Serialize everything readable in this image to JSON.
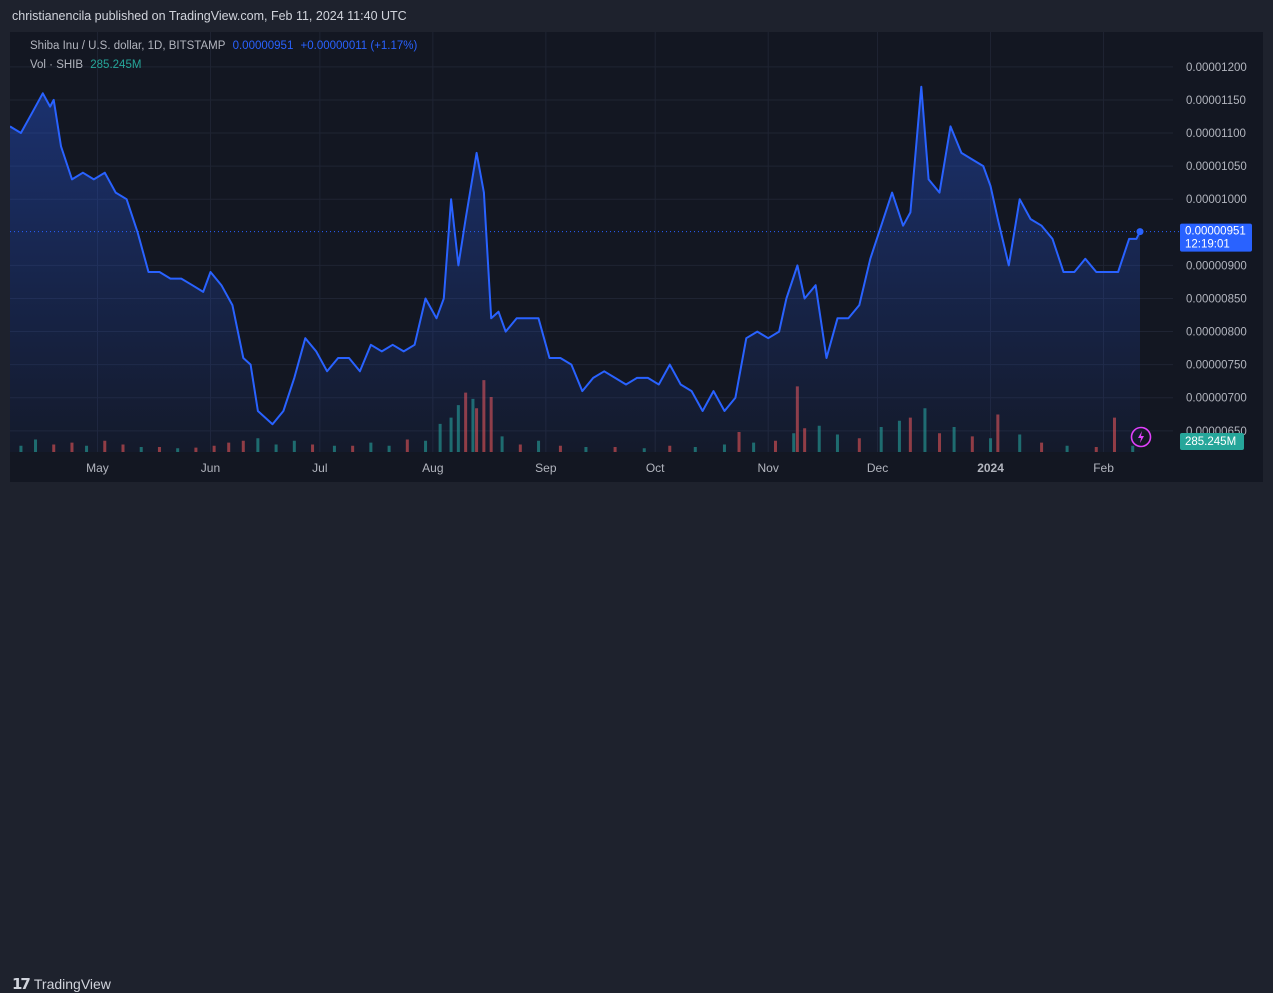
{
  "header": {
    "published_by": "christianencila published on TradingView.com, Feb 11, 2024 11:40 UTC"
  },
  "legend": {
    "symbol": "Shiba Inu / U.S. dollar, 1D, BITSTAMP",
    "last": "0.00000951",
    "change": "+0.00000011 (+1.17%)",
    "vol_label": "Vol · SHIB",
    "vol_value": "285.245M"
  },
  "badges": {
    "price": "0.00000951",
    "countdown": "12:19:01",
    "volume": "285.245M"
  },
  "footer": {
    "brand": "TradingView"
  },
  "colors": {
    "line": "#2962ff",
    "vol_up": "#26a69a",
    "vol_down": "#ef5350",
    "background": "#131722",
    "text": "#b2b5be"
  },
  "chart_data": {
    "type": "area",
    "title": "Shiba Inu / U.S. dollar, 1D, BITSTAMP",
    "y_ticks": [
      "0.00001200",
      "0.00001150",
      "0.00001100",
      "0.00001050",
      "0.00001000",
      "0.00000900",
      "0.00000850",
      "0.00000800",
      "0.00000750",
      "0.00000700",
      "0.00000650"
    ],
    "ylim": [
      6.18e-06,
      1.23e-05
    ],
    "x_ticks": [
      "May",
      "Jun",
      "Jul",
      "Aug",
      "Sep",
      "Oct",
      "Nov",
      "Dec",
      "2024",
      "Feb"
    ],
    "grid": true,
    "x_range": [
      "2023-04-07",
      "2024-02-11"
    ],
    "series": [
      {
        "values": [
          {
            "x": "2023-04-07",
            "y": 1.11e-05
          },
          {
            "x": "2023-04-10",
            "y": 1.1e-05
          },
          {
            "x": "2023-04-13",
            "y": 1.13e-05
          },
          {
            "x": "2023-04-16",
            "y": 1.16e-05
          },
          {
            "x": "2023-04-18",
            "y": 1.14e-05
          },
          {
            "x": "2023-04-19",
            "y": 1.15e-05
          },
          {
            "x": "2023-04-21",
            "y": 1.08e-05
          },
          {
            "x": "2023-04-24",
            "y": 1.03e-05
          },
          {
            "x": "2023-04-27",
            "y": 1.04e-05
          },
          {
            "x": "2023-04-30",
            "y": 1.03e-05
          },
          {
            "x": "2023-05-03",
            "y": 1.04e-05
          },
          {
            "x": "2023-05-06",
            "y": 1.01e-05
          },
          {
            "x": "2023-05-09",
            "y": 1e-05
          },
          {
            "x": "2023-05-12",
            "y": 9.5e-06
          },
          {
            "x": "2023-05-15",
            "y": 8.9e-06
          },
          {
            "x": "2023-05-18",
            "y": 8.9e-06
          },
          {
            "x": "2023-05-21",
            "y": 8.8e-06
          },
          {
            "x": "2023-05-24",
            "y": 8.8e-06
          },
          {
            "x": "2023-05-27",
            "y": 8.7e-06
          },
          {
            "x": "2023-05-30",
            "y": 8.6e-06
          },
          {
            "x": "2023-06-01",
            "y": 8.9e-06
          },
          {
            "x": "2023-06-04",
            "y": 8.7e-06
          },
          {
            "x": "2023-06-07",
            "y": 8.4e-06
          },
          {
            "x": "2023-06-10",
            "y": 7.6e-06
          },
          {
            "x": "2023-06-12",
            "y": 7.5e-06
          },
          {
            "x": "2023-06-14",
            "y": 6.8e-06
          },
          {
            "x": "2023-06-16",
            "y": 6.7e-06
          },
          {
            "x": "2023-06-18",
            "y": 6.6e-06
          },
          {
            "x": "2023-06-21",
            "y": 6.8e-06
          },
          {
            "x": "2023-06-24",
            "y": 7.3e-06
          },
          {
            "x": "2023-06-27",
            "y": 7.9e-06
          },
          {
            "x": "2023-06-30",
            "y": 7.7e-06
          },
          {
            "x": "2023-07-03",
            "y": 7.4e-06
          },
          {
            "x": "2023-07-06",
            "y": 7.6e-06
          },
          {
            "x": "2023-07-09",
            "y": 7.6e-06
          },
          {
            "x": "2023-07-12",
            "y": 7.4e-06
          },
          {
            "x": "2023-07-15",
            "y": 7.8e-06
          },
          {
            "x": "2023-07-18",
            "y": 7.7e-06
          },
          {
            "x": "2023-07-21",
            "y": 7.8e-06
          },
          {
            "x": "2023-07-24",
            "y": 7.7e-06
          },
          {
            "x": "2023-07-27",
            "y": 7.8e-06
          },
          {
            "x": "2023-07-30",
            "y": 8.5e-06
          },
          {
            "x": "2023-08-02",
            "y": 8.2e-06
          },
          {
            "x": "2023-08-04",
            "y": 8.5e-06
          },
          {
            "x": "2023-08-06",
            "y": 1e-05
          },
          {
            "x": "2023-08-08",
            "y": 9e-06
          },
          {
            "x": "2023-08-10",
            "y": 9.7e-06
          },
          {
            "x": "2023-08-13",
            "y": 1.07e-05
          },
          {
            "x": "2023-08-15",
            "y": 1.01e-05
          },
          {
            "x": "2023-08-17",
            "y": 8.2e-06
          },
          {
            "x": "2023-08-19",
            "y": 8.3e-06
          },
          {
            "x": "2023-08-21",
            "y": 8e-06
          },
          {
            "x": "2023-08-24",
            "y": 8.2e-06
          },
          {
            "x": "2023-08-27",
            "y": 8.2e-06
          },
          {
            "x": "2023-08-30",
            "y": 8.2e-06
          },
          {
            "x": "2023-09-02",
            "y": 7.6e-06
          },
          {
            "x": "2023-09-05",
            "y": 7.6e-06
          },
          {
            "x": "2023-09-08",
            "y": 7.5e-06
          },
          {
            "x": "2023-09-11",
            "y": 7.1e-06
          },
          {
            "x": "2023-09-14",
            "y": 7.3e-06
          },
          {
            "x": "2023-09-17",
            "y": 7.4e-06
          },
          {
            "x": "2023-09-20",
            "y": 7.3e-06
          },
          {
            "x": "2023-09-23",
            "y": 7.2e-06
          },
          {
            "x": "2023-09-26",
            "y": 7.3e-06
          },
          {
            "x": "2023-09-29",
            "y": 7.3e-06
          },
          {
            "x": "2023-10-02",
            "y": 7.2e-06
          },
          {
            "x": "2023-10-05",
            "y": 7.5e-06
          },
          {
            "x": "2023-10-08",
            "y": 7.2e-06
          },
          {
            "x": "2023-10-11",
            "y": 7.1e-06
          },
          {
            "x": "2023-10-14",
            "y": 6.8e-06
          },
          {
            "x": "2023-10-17",
            "y": 7.1e-06
          },
          {
            "x": "2023-10-20",
            "y": 6.8e-06
          },
          {
            "x": "2023-10-23",
            "y": 7e-06
          },
          {
            "x": "2023-10-26",
            "y": 7.9e-06
          },
          {
            "x": "2023-10-29",
            "y": 8e-06
          },
          {
            "x": "2023-11-01",
            "y": 7.9e-06
          },
          {
            "x": "2023-11-04",
            "y": 8e-06
          },
          {
            "x": "2023-11-06",
            "y": 8.5e-06
          },
          {
            "x": "2023-11-09",
            "y": 9e-06
          },
          {
            "x": "2023-11-11",
            "y": 8.5e-06
          },
          {
            "x": "2023-11-14",
            "y": 8.7e-06
          },
          {
            "x": "2023-11-17",
            "y": 7.6e-06
          },
          {
            "x": "2023-11-20",
            "y": 8.2e-06
          },
          {
            "x": "2023-11-23",
            "y": 8.2e-06
          },
          {
            "x": "2023-11-26",
            "y": 8.4e-06
          },
          {
            "x": "2023-11-29",
            "y": 9.1e-06
          },
          {
            "x": "2023-12-02",
            "y": 9.6e-06
          },
          {
            "x": "2023-12-05",
            "y": 1.01e-05
          },
          {
            "x": "2023-12-08",
            "y": 9.6e-06
          },
          {
            "x": "2023-12-10",
            "y": 9.8e-06
          },
          {
            "x": "2023-12-13",
            "y": 1.17e-05
          },
          {
            "x": "2023-12-15",
            "y": 1.03e-05
          },
          {
            "x": "2023-12-18",
            "y": 1.01e-05
          },
          {
            "x": "2023-12-21",
            "y": 1.11e-05
          },
          {
            "x": "2023-12-24",
            "y": 1.07e-05
          },
          {
            "x": "2023-12-27",
            "y": 1.06e-05
          },
          {
            "x": "2023-12-30",
            "y": 1.05e-05
          },
          {
            "x": "2024-01-01",
            "y": 1.02e-05
          },
          {
            "x": "2024-01-03",
            "y": 9.7e-06
          },
          {
            "x": "2024-01-06",
            "y": 9e-06
          },
          {
            "x": "2024-01-09",
            "y": 1e-05
          },
          {
            "x": "2024-01-12",
            "y": 9.7e-06
          },
          {
            "x": "2024-01-15",
            "y": 9.6e-06
          },
          {
            "x": "2024-01-18",
            "y": 9.4e-06
          },
          {
            "x": "2024-01-21",
            "y": 8.9e-06
          },
          {
            "x": "2024-01-24",
            "y": 8.9e-06
          },
          {
            "x": "2024-01-27",
            "y": 9.1e-06
          },
          {
            "x": "2024-01-30",
            "y": 8.9e-06
          },
          {
            "x": "2024-02-02",
            "y": 8.9e-06
          },
          {
            "x": "2024-02-05",
            "y": 8.9e-06
          },
          {
            "x": "2024-02-08",
            "y": 9.4e-06
          },
          {
            "x": "2024-02-10",
            "y": 9.4e-06
          },
          {
            "x": "2024-02-11",
            "y": 9.51e-06
          }
        ]
      }
    ],
    "volume_series": {
      "name": "Vol · SHIB",
      "ylim": [
        0,
        1.2
      ],
      "values": [
        {
          "x": "2023-04-10",
          "v": 0.1,
          "up": true
        },
        {
          "x": "2023-04-14",
          "v": 0.2,
          "up": true
        },
        {
          "x": "2023-04-19",
          "v": 0.12,
          "up": false
        },
        {
          "x": "2023-04-24",
          "v": 0.15,
          "up": false
        },
        {
          "x": "2023-04-28",
          "v": 0.1,
          "up": true
        },
        {
          "x": "2023-05-03",
          "v": 0.18,
          "up": false
        },
        {
          "x": "2023-05-08",
          "v": 0.12,
          "up": false
        },
        {
          "x": "2023-05-13",
          "v": 0.08,
          "up": true
        },
        {
          "x": "2023-05-18",
          "v": 0.08,
          "up": false
        },
        {
          "x": "2023-05-23",
          "v": 0.06,
          "up": true
        },
        {
          "x": "2023-05-28",
          "v": 0.07,
          "up": false
        },
        {
          "x": "2023-06-02",
          "v": 0.1,
          "up": false
        },
        {
          "x": "2023-06-06",
          "v": 0.15,
          "up": false
        },
        {
          "x": "2023-06-10",
          "v": 0.18,
          "up": false
        },
        {
          "x": "2023-06-14",
          "v": 0.22,
          "up": true
        },
        {
          "x": "2023-06-19",
          "v": 0.12,
          "up": true
        },
        {
          "x": "2023-06-24",
          "v": 0.18,
          "up": true
        },
        {
          "x": "2023-06-29",
          "v": 0.12,
          "up": false
        },
        {
          "x": "2023-07-05",
          "v": 0.1,
          "up": true
        },
        {
          "x": "2023-07-10",
          "v": 0.1,
          "up": false
        },
        {
          "x": "2023-07-15",
          "v": 0.15,
          "up": true
        },
        {
          "x": "2023-07-20",
          "v": 0.1,
          "up": true
        },
        {
          "x": "2023-07-25",
          "v": 0.2,
          "up": false
        },
        {
          "x": "2023-07-30",
          "v": 0.18,
          "up": true
        },
        {
          "x": "2023-08-03",
          "v": 0.45,
          "up": true
        },
        {
          "x": "2023-08-06",
          "v": 0.55,
          "up": true
        },
        {
          "x": "2023-08-08",
          "v": 0.75,
          "up": true
        },
        {
          "x": "2023-08-10",
          "v": 0.95,
          "up": false
        },
        {
          "x": "2023-08-12",
          "v": 0.85,
          "up": true
        },
        {
          "x": "2023-08-13",
          "v": 0.7,
          "up": false
        },
        {
          "x": "2023-08-15",
          "v": 1.15,
          "up": false
        },
        {
          "x": "2023-08-17",
          "v": 0.88,
          "up": false
        },
        {
          "x": "2023-08-20",
          "v": 0.25,
          "up": true
        },
        {
          "x": "2023-08-25",
          "v": 0.12,
          "up": false
        },
        {
          "x": "2023-08-30",
          "v": 0.18,
          "up": true
        },
        {
          "x": "2023-09-05",
          "v": 0.1,
          "up": false
        },
        {
          "x": "2023-09-12",
          "v": 0.08,
          "up": true
        },
        {
          "x": "2023-09-20",
          "v": 0.08,
          "up": false
        },
        {
          "x": "2023-09-28",
          "v": 0.06,
          "up": true
        },
        {
          "x": "2023-10-05",
          "v": 0.1,
          "up": false
        },
        {
          "x": "2023-10-12",
          "v": 0.08,
          "up": true
        },
        {
          "x": "2023-10-20",
          "v": 0.12,
          "up": true
        },
        {
          "x": "2023-10-24",
          "v": 0.32,
          "up": false
        },
        {
          "x": "2023-10-28",
          "v": 0.15,
          "up": true
        },
        {
          "x": "2023-11-03",
          "v": 0.18,
          "up": false
        },
        {
          "x": "2023-11-08",
          "v": 0.3,
          "up": true
        },
        {
          "x": "2023-11-09",
          "v": 1.05,
          "up": false
        },
        {
          "x": "2023-11-11",
          "v": 0.38,
          "up": false
        },
        {
          "x": "2023-11-15",
          "v": 0.42,
          "up": true
        },
        {
          "x": "2023-11-20",
          "v": 0.28,
          "up": true
        },
        {
          "x": "2023-11-26",
          "v": 0.22,
          "up": false
        },
        {
          "x": "2023-12-02",
          "v": 0.4,
          "up": true
        },
        {
          "x": "2023-12-07",
          "v": 0.5,
          "up": true
        },
        {
          "x": "2023-12-10",
          "v": 0.55,
          "up": false
        },
        {
          "x": "2023-12-14",
          "v": 0.7,
          "up": true
        },
        {
          "x": "2023-12-18",
          "v": 0.3,
          "up": false
        },
        {
          "x": "2023-12-22",
          "v": 0.4,
          "up": true
        },
        {
          "x": "2023-12-27",
          "v": 0.25,
          "up": false
        },
        {
          "x": "2024-01-01",
          "v": 0.22,
          "up": true
        },
        {
          "x": "2024-01-03",
          "v": 0.6,
          "up": false
        },
        {
          "x": "2024-01-09",
          "v": 0.28,
          "up": true
        },
        {
          "x": "2024-01-15",
          "v": 0.15,
          "up": false
        },
        {
          "x": "2024-01-22",
          "v": 0.1,
          "up": true
        },
        {
          "x": "2024-01-30",
          "v": 0.08,
          "up": false
        },
        {
          "x": "2024-02-04",
          "v": 0.55,
          "up": false
        },
        {
          "x": "2024-02-09",
          "v": 0.1,
          "up": true
        }
      ]
    }
  }
}
